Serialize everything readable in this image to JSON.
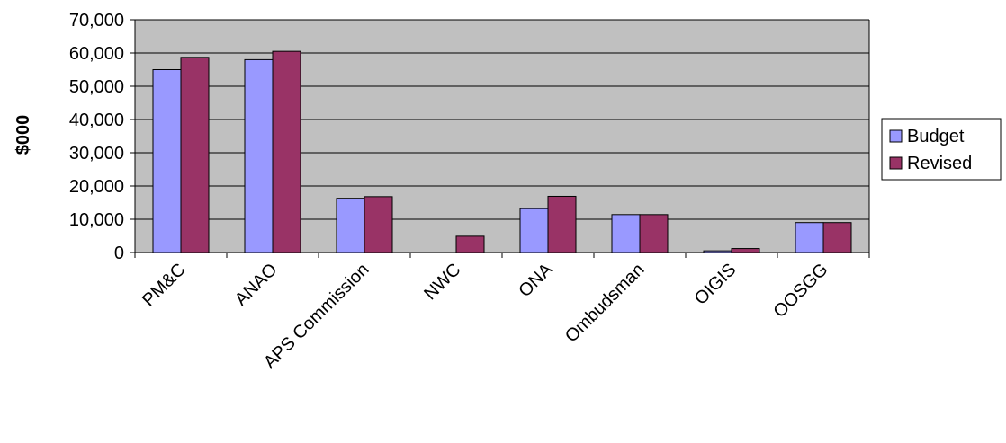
{
  "chart_data": {
    "type": "bar",
    "title": "",
    "xlabel": "",
    "ylabel": "$000",
    "ylim": [
      0,
      70000
    ],
    "yticks": [
      "0",
      "10,000",
      "20,000",
      "30,000",
      "40,000",
      "50,000",
      "60,000",
      "70,000"
    ],
    "ytick_values": [
      0,
      10000,
      20000,
      30000,
      40000,
      50000,
      60000,
      70000
    ],
    "grid": true,
    "legend_position": "right",
    "categories": [
      "PM&C",
      "ANAO",
      "APS Commission",
      "NWC",
      "ONA",
      "Ombudsman",
      "OIGIS",
      "OOSGG"
    ],
    "series": [
      {
        "name": "Budget",
        "color": "#9999ff",
        "values": [
          55000,
          58000,
          16300,
          0,
          13200,
          11400,
          500,
          9000
        ]
      },
      {
        "name": "Revised",
        "color": "#993366",
        "values": [
          58700,
          60500,
          16800,
          4900,
          16900,
          11400,
          1200,
          9000
        ]
      }
    ],
    "plot_background": "#c0c0c0"
  }
}
